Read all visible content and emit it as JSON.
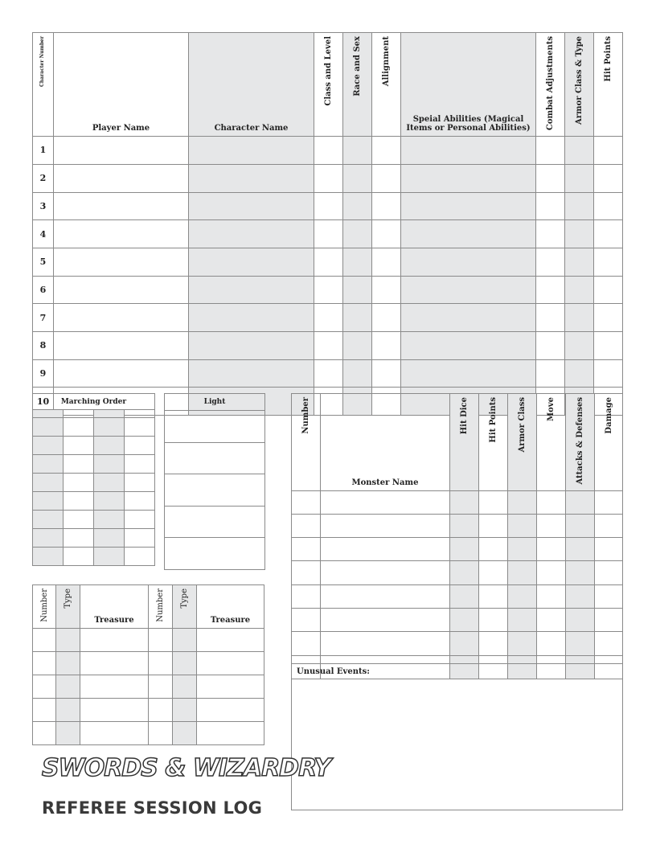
{
  "character_table": {
    "headers": [
      "Character Number",
      "Player Name",
      "Character Name",
      "Class and Level",
      "Race and Sex",
      "Allignment",
      "Speial Abilities (Magical Items or Personal Abilities)",
      "Combat Adjustments",
      "Armor Class & Type",
      "Hit Points"
    ],
    "row_numbers": [
      "1",
      "2",
      "3",
      "4",
      "5",
      "6",
      "7",
      "8",
      "9",
      "10"
    ]
  },
  "marching_order": {
    "title": "Marching Order"
  },
  "light": {
    "title": "Light"
  },
  "monster_table": {
    "headers": [
      "Number",
      "Monster Name",
      "Hit Dice",
      "Hit Points",
      "Armor Class",
      "Move",
      "Attacks & Defenses",
      "Damage"
    ]
  },
  "treasure_table": {
    "headers": [
      "Number",
      "Type",
      "Treasure",
      "Number",
      "Type",
      "Treasure"
    ]
  },
  "unusual_events": {
    "label": "Unusual Events:"
  },
  "logo": {
    "text": "SWORDS & WIZARDRY"
  },
  "subtitle": "REFEREE SESSION LOG"
}
